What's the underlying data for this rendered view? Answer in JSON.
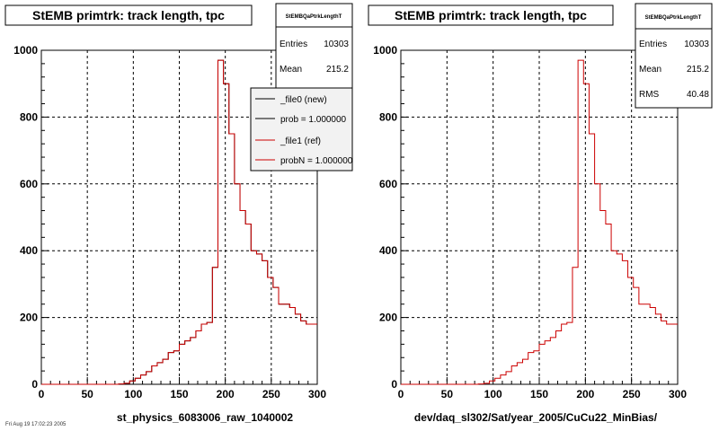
{
  "chart_data": [
    {
      "type": "histogram",
      "title": "StEMB primtrk: track length, tpc",
      "xlabel": "st_physics_6083006_raw_1040002",
      "ylabel": "",
      "xlim": [
        0,
        300
      ],
      "ylim": [
        0,
        1000
      ],
      "x_ticks": [
        0,
        50,
        100,
        150,
        200,
        250,
        300
      ],
      "y_ticks": [
        0,
        200,
        400,
        600,
        800,
        1000
      ],
      "grid": true,
      "bin_width": 6,
      "stats": {
        "name": "StEMBQaPtrkLengthT",
        "rows": [
          {
            "label": "Entries",
            "value": "10303"
          },
          {
            "label": "Mean",
            "value": "215.2"
          }
        ]
      },
      "legend": {
        "position": "top-right",
        "entries": [
          {
            "label": "_file0 (new)",
            "color": "#000000"
          },
          {
            "label": "prob = 1.000000",
            "color": "#000000"
          },
          {
            "label": "_file1 (ref)",
            "color": "#cc0000"
          },
          {
            "label": "probN = 1.000000",
            "color": "#cc0000"
          }
        ]
      },
      "series": [
        {
          "name": "_file0 (new)",
          "color": "#000000",
          "values": [
            0,
            0,
            0,
            0,
            0,
            0,
            0,
            0,
            0,
            0,
            0,
            0,
            0,
            0,
            1,
            3,
            10,
            18,
            28,
            38,
            55,
            65,
            75,
            95,
            100,
            120,
            130,
            140,
            160,
            180,
            185,
            350,
            970,
            900,
            750,
            600,
            520,
            480,
            400,
            390,
            370,
            320,
            290,
            240,
            240,
            230,
            210,
            190,
            180,
            180
          ]
        },
        {
          "name": "_file1 (ref)",
          "color": "#cc0000",
          "values": [
            0,
            0,
            0,
            0,
            0,
            0,
            0,
            0,
            0,
            0,
            0,
            0,
            0,
            0,
            1,
            3,
            10,
            18,
            28,
            38,
            55,
            65,
            75,
            95,
            100,
            120,
            130,
            140,
            160,
            180,
            185,
            350,
            970,
            900,
            750,
            600,
            520,
            480,
            400,
            390,
            370,
            320,
            290,
            240,
            240,
            230,
            210,
            190,
            180,
            180
          ]
        }
      ]
    },
    {
      "type": "histogram",
      "title": "StEMB primtrk: track length, tpc",
      "xlabel": "dev/daq_sl302/Sat/year_2005/CuCu22_MinBias/",
      "ylabel": "",
      "xlim": [
        0,
        300
      ],
      "ylim": [
        0,
        1000
      ],
      "x_ticks": [
        0,
        50,
        100,
        150,
        200,
        250,
        300
      ],
      "y_ticks": [
        0,
        200,
        400,
        600,
        800,
        1000
      ],
      "grid": true,
      "bin_width": 6,
      "stats": {
        "name": "StEMBQaPtrkLengthT",
        "rows": [
          {
            "label": "Entries",
            "value": "10303"
          },
          {
            "label": "Mean",
            "value": "215.2"
          },
          {
            "label": "RMS",
            "value": "40.48"
          }
        ]
      },
      "series": [
        {
          "name": "",
          "color": "#cc0000",
          "values": [
            0,
            0,
            0,
            0,
            0,
            0,
            0,
            0,
            0,
            0,
            0,
            0,
            0,
            0,
            1,
            3,
            10,
            18,
            28,
            38,
            55,
            65,
            75,
            95,
            100,
            120,
            130,
            140,
            160,
            180,
            185,
            350,
            970,
            900,
            750,
            600,
            520,
            480,
            400,
            390,
            370,
            320,
            290,
            240,
            240,
            230,
            210,
            190,
            180,
            180
          ]
        }
      ]
    }
  ],
  "footer": "Fri Aug 19 17:02:23 2005"
}
